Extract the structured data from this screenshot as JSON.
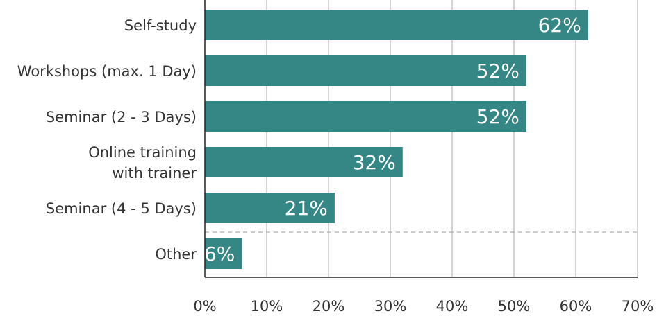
{
  "chart_data": {
    "type": "bar",
    "orientation": "horizontal",
    "categories": [
      "Self-study",
      "Workshops (max. 1 Day)",
      "Seminar (2 - 3 Days)",
      "Online training\nwith trainer",
      "Seminar (4 - 5 Days)",
      "Other"
    ],
    "values": [
      62,
      52,
      52,
      32,
      21,
      6
    ],
    "value_labels": [
      "62%",
      "52%",
      "52%",
      "32%",
      "21%",
      "6%"
    ],
    "color": "#358786",
    "xlim": [
      0,
      70
    ],
    "xticks": [
      {
        "value": 0,
        "label": "0%"
      },
      {
        "value": 10,
        "label": "10%"
      },
      {
        "value": 20,
        "label": "20%"
      },
      {
        "value": 30,
        "label": "30%"
      },
      {
        "value": 40,
        "label": "40%"
      },
      {
        "value": 50,
        "label": "50%"
      },
      {
        "value": 60,
        "label": "60%"
      },
      {
        "value": 70,
        "label": "70%"
      }
    ],
    "grid": true
  }
}
